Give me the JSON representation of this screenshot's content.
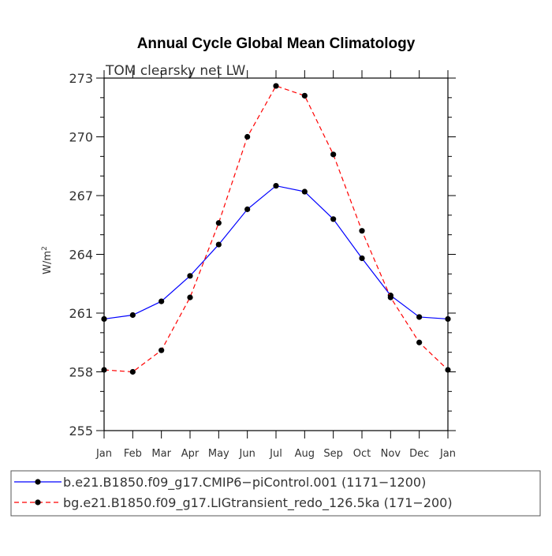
{
  "chart_data": {
    "type": "line",
    "title": "Annual Cycle Global Mean Climatology",
    "subtitle": "TOM clearsky net LW",
    "ylabel": "W/m",
    "ylabel_superscript": "2",
    "ylim": [
      255,
      273
    ],
    "yticks": [
      255,
      258,
      261,
      264,
      267,
      270,
      273
    ],
    "ytick_labels": [
      "255",
      "258",
      "261",
      "264",
      "267",
      "270",
      "273"
    ],
    "categories": [
      "Jan",
      "Feb",
      "Mar",
      "Apr",
      "May",
      "Jun",
      "Jul",
      "Aug",
      "Sep",
      "Oct",
      "Nov",
      "Dec",
      "Jan"
    ],
    "grid": false,
    "legend_position": "bottom",
    "series": [
      {
        "name": "b.e21.B1850.f09_g17.CMIP6−piControl.001 (1171−1200)",
        "color": "#0000ff",
        "line_style": "solid",
        "marker": "circle",
        "values": [
          260.7,
          260.9,
          261.6,
          262.9,
          264.5,
          266.3,
          267.5,
          267.2,
          265.8,
          263.8,
          261.9,
          260.8,
          260.7
        ]
      },
      {
        "name": "bg.e21.B1850.f09_g17.LIGtransient_redo_126.5ka (171−200)",
        "color": "#ff0000",
        "line_style": "dashed",
        "marker": "circle",
        "values": [
          258.1,
          258.0,
          259.1,
          261.8,
          265.6,
          270.0,
          272.6,
          272.1,
          269.1,
          265.2,
          261.8,
          259.5,
          258.1
        ]
      }
    ]
  }
}
